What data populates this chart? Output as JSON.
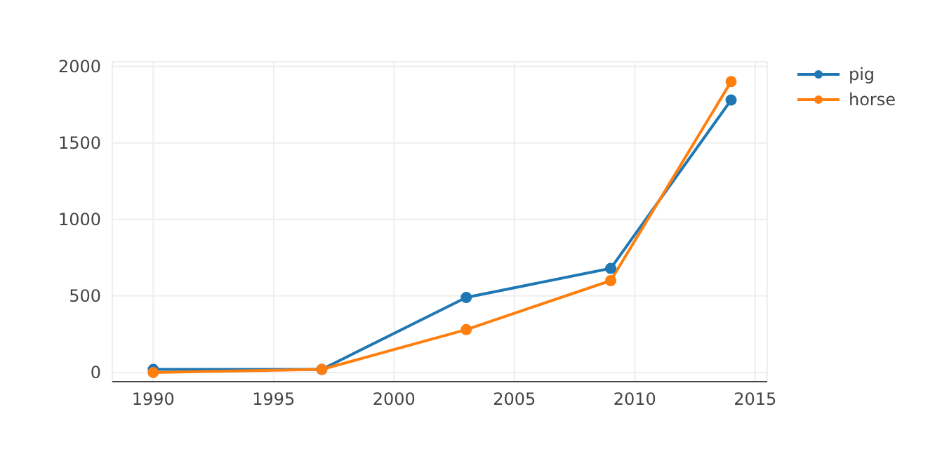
{
  "chart_data": {
    "type": "line",
    "x": [
      1990,
      1997,
      2003,
      2009,
      2014
    ],
    "series": [
      {
        "name": "pig",
        "color": "#1f77b4",
        "values": [
          20,
          20,
          490,
          680,
          1780
        ]
      },
      {
        "name": "horse",
        "color": "#ff7f0e",
        "values": [
          0,
          20,
          280,
          600,
          1900
        ]
      }
    ],
    "xlim": [
      1988.3,
      2015.5
    ],
    "xticks": [
      1990,
      1995,
      2000,
      2005,
      2010,
      2015
    ],
    "ylim": [
      -60,
      2030
    ],
    "yticks": [
      0,
      500,
      1000,
      1500,
      2000
    ],
    "grid": true,
    "legend": "top right",
    "marker": "circle",
    "line_style": "solid"
  }
}
